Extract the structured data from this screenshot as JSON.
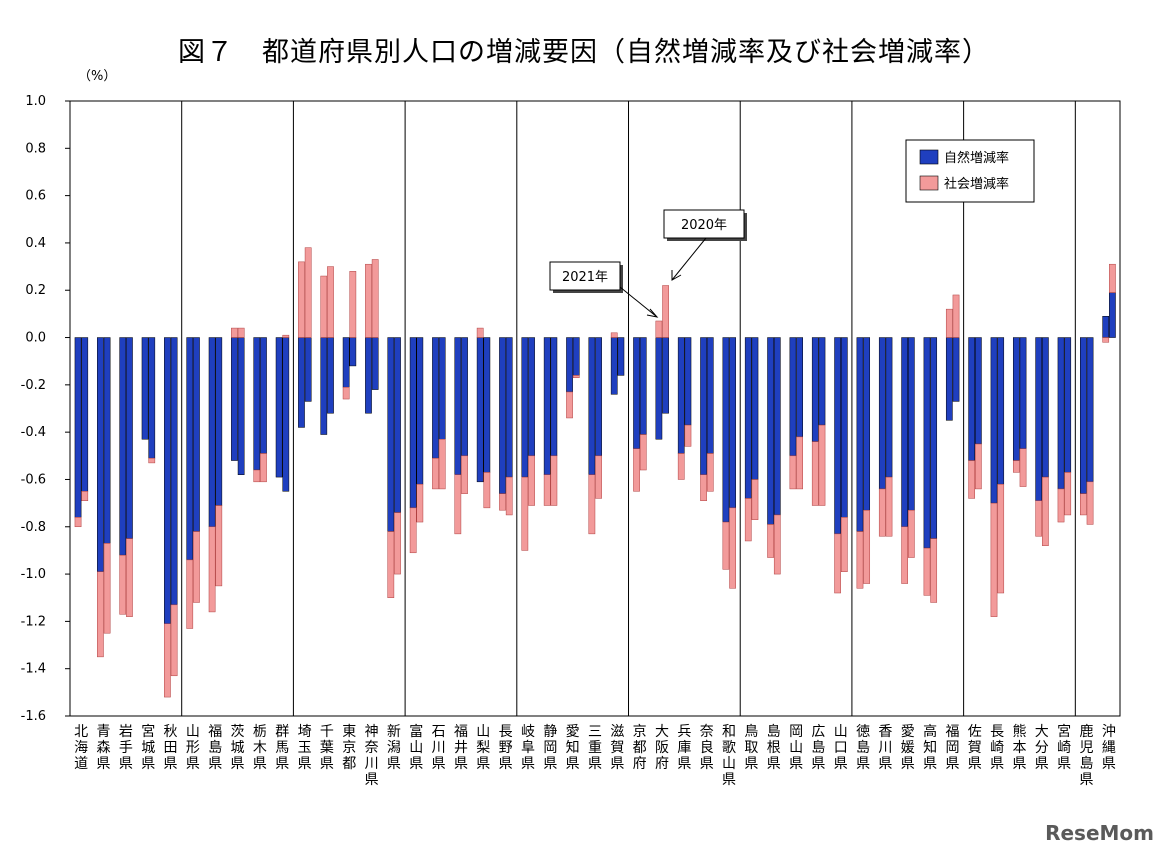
{
  "chart_data": {
    "type": "bar",
    "title": "図７　都道府県別人口の増減要因（自然増減率及び社会増減率）",
    "ylabel": "（%）",
    "ylim": [
      -1.6,
      1.0
    ],
    "yticks": [
      1.0,
      0.8,
      0.6,
      0.4,
      0.2,
      0.0,
      -0.2,
      -0.4,
      -0.6,
      -0.8,
      -1.0,
      -1.2,
      -1.4,
      -1.6
    ],
    "ytick_labels": [
      "1.0",
      "0.8",
      "0.6",
      "0.4",
      "0.2",
      "0.0",
      "-0.2",
      "-0.4",
      "-0.6",
      "-0.8",
      "-1.0",
      "-1.2",
      "-1.4",
      "-1.6"
    ],
    "grid": "vertical group separators",
    "legend_position": "top-right",
    "categories": [
      "北海道",
      "青森県",
      "岩手県",
      "宮城県",
      "秋田県",
      "山形県",
      "福島県",
      "茨城県",
      "栃木県",
      "群馬県",
      "埼玉県",
      "千葉県",
      "東京都",
      "神奈川県",
      "新潟県",
      "富山県",
      "石川県",
      "福井県",
      "山梨県",
      "長野県",
      "岐阜県",
      "静岡県",
      "愛知県",
      "三重県",
      "滋賀県",
      "京都府",
      "大阪府",
      "兵庫県",
      "奈良県",
      "和歌山県",
      "鳥取県",
      "島根県",
      "岡山県",
      "広島県",
      "山口県",
      "徳島県",
      "香川県",
      "愛媛県",
      "高知県",
      "福岡県",
      "佐賀県",
      "長崎県",
      "熊本県",
      "大分県",
      "宮崎県",
      "鹿児島県",
      "沖縄県"
    ],
    "bar_pair_note": "each prefecture has a 2020年 bar (left) and a 2021年 bar (right)",
    "series": [
      {
        "name": "自然増減率",
        "color": "#1f3fbf",
        "values_2020": [
          -0.76,
          -0.99,
          -0.92,
          -0.43,
          -1.21,
          -0.94,
          -0.8,
          -0.52,
          -0.56,
          -0.59,
          -0.38,
          -0.41,
          -0.21,
          -0.32,
          -0.82,
          -0.72,
          -0.51,
          -0.58,
          -0.61,
          -0.66,
          -0.59,
          -0.58,
          -0.23,
          -0.58,
          -0.24,
          -0.47,
          -0.43,
          -0.49,
          -0.58,
          -0.78,
          -0.68,
          -0.79,
          -0.5,
          -0.44,
          -0.83,
          -0.82,
          -0.64,
          -0.8,
          -0.89,
          -0.35,
          -0.52,
          -0.7,
          -0.52,
          -0.69,
          -0.64,
          -0.66,
          0.09
        ],
        "values_2021": [
          -0.65,
          -0.87,
          -0.85,
          -0.51,
          -1.13,
          -0.82,
          -0.71,
          -0.58,
          -0.49,
          -0.65,
          -0.27,
          -0.32,
          -0.12,
          -0.22,
          -0.74,
          -0.62,
          -0.43,
          -0.5,
          -0.57,
          -0.59,
          -0.5,
          -0.5,
          -0.16,
          -0.5,
          -0.16,
          -0.41,
          -0.32,
          -0.37,
          -0.49,
          -0.72,
          -0.6,
          -0.75,
          -0.42,
          -0.37,
          -0.76,
          -0.73,
          -0.59,
          -0.73,
          -0.85,
          -0.27,
          -0.45,
          -0.62,
          -0.47,
          -0.59,
          -0.57,
          -0.61,
          0.19
        ]
      },
      {
        "name": "社会増減率",
        "color": "#f29a9a",
        "values_2020": [
          -0.04,
          -0.36,
          -0.25,
          0.0,
          -0.31,
          -0.29,
          -0.36,
          0.04,
          -0.05,
          0.0,
          0.32,
          0.26,
          -0.05,
          0.31,
          -0.28,
          -0.19,
          -0.13,
          -0.25,
          0.04,
          -0.07,
          -0.31,
          -0.13,
          -0.11,
          -0.25,
          0.02,
          -0.18,
          0.07,
          -0.11,
          -0.11,
          -0.2,
          -0.18,
          -0.14,
          -0.14,
          -0.27,
          -0.25,
          -0.24,
          -0.2,
          -0.24,
          -0.2,
          0.12,
          -0.16,
          -0.48,
          -0.05,
          -0.15,
          -0.14,
          -0.09,
          -0.02
        ],
        "values_2021": [
          -0.04,
          -0.38,
          -0.33,
          -0.02,
          -0.3,
          -0.3,
          -0.34,
          0.04,
          -0.12,
          0.01,
          0.38,
          0.3,
          0.28,
          0.33,
          -0.26,
          -0.16,
          -0.21,
          -0.16,
          -0.15,
          -0.16,
          -0.21,
          -0.21,
          -0.01,
          -0.18,
          0.0,
          -0.15,
          0.22,
          -0.09,
          -0.16,
          -0.34,
          -0.17,
          -0.25,
          -0.22,
          -0.34,
          -0.23,
          -0.31,
          -0.25,
          -0.2,
          -0.27,
          0.18,
          -0.19,
          -0.46,
          -0.16,
          -0.29,
          -0.18,
          -0.18,
          0.12
        ]
      }
    ],
    "legend": [
      "自然増減率",
      "社会増減率"
    ],
    "annotations": [
      "2021年",
      "2020年"
    ]
  },
  "watermark": "ReseMom"
}
